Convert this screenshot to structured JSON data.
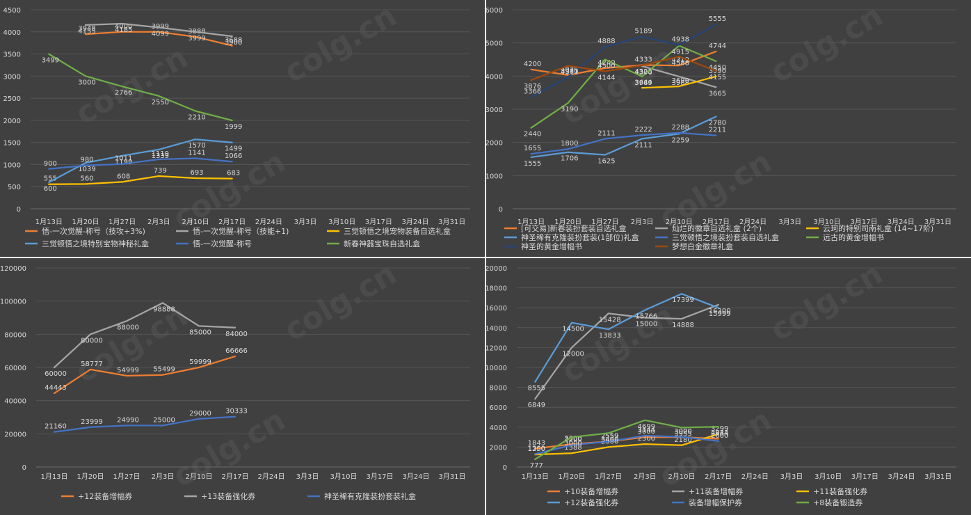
{
  "colors": {
    "orange": "#ED7D31",
    "gray": "#A5A5A5",
    "yellow": "#FFC000",
    "lightblue": "#5B9BD5",
    "blue": "#4472C4",
    "green": "#70AD47",
    "navy": "#264478",
    "brown": "#9E480E"
  },
  "watermark": "colg.cn",
  "chart_data": [
    {
      "type": "line",
      "categories": [
        "1月13日",
        "1月20日",
        "1月27日",
        "2月3日",
        "2月10日",
        "2月17日",
        "2月24日",
        "3月3日",
        "3月10日",
        "3月17日",
        "3月24日",
        "3月31日"
      ],
      "ylim": [
        0,
        4500
      ],
      "ystep": 500,
      "legend_position": "bottom",
      "series": [
        {
          "name": "悟-一次觉醒-称号（技攻+3%)",
          "color": "orange",
          "values": [
            null,
            3948,
            4000,
            3999,
            3888,
            3688,
            null,
            null,
            null,
            null,
            null,
            null
          ]
        },
        {
          "name": "悟-一次觉醒-称号（技能+1)",
          "color": "gray",
          "values": [
            null,
            4155,
            4185,
            4099,
            3999,
            3900,
            null,
            null,
            null,
            null,
            null,
            null
          ]
        },
        {
          "name": "三觉顿悟之境宠物装备自选礼盒",
          "color": "yellow",
          "values": [
            555,
            560,
            608,
            739,
            693,
            683,
            null,
            null,
            null,
            null,
            null,
            null
          ]
        },
        {
          "name": "三觉顿悟之境特别宝物神秘礼盒",
          "color": "lightblue",
          "values": [
            600,
            1039,
            1199,
            1339,
            1570,
            1499,
            null,
            null,
            null,
            null,
            null,
            null
          ]
        },
        {
          "name": "悟-一次觉醒-称号",
          "color": "blue",
          "values": [
            900,
            980,
            1011,
            1119,
            1141,
            1066,
            null,
            null,
            null,
            null,
            null,
            null
          ]
        },
        {
          "name": "新春神器宝珠自选礼盒",
          "color": "green",
          "values": [
            3499,
            3000,
            2766,
            2550,
            2210,
            1999,
            null,
            null,
            null,
            null,
            null,
            null
          ]
        }
      ]
    },
    {
      "type": "line",
      "categories": [
        "1月13日",
        "1月20日",
        "1月27日",
        "2月3日",
        "2月10日",
        "2月17日",
        "2月24日",
        "3月3日",
        "3月10日",
        "3月17日",
        "3月24日",
        "3月31日"
      ],
      "ylim": [
        0,
        6000
      ],
      "ystep": 1000,
      "legend_position": "bottom",
      "series": [
        {
          "name": "[可交易]新春装扮套装自选礼盒",
          "color": "orange",
          "values": [
            4200,
            4030,
            4240,
            4333,
            4319,
            4744,
            null,
            null,
            null,
            null,
            null,
            null
          ]
        },
        {
          "name": "灿烂的徽章自选礼盒 (2个)",
          "color": "gray",
          "values": [
            null,
            null,
            null,
            4300,
            3988,
            3665,
            null,
            null,
            null,
            null,
            null,
            null
          ]
        },
        {
          "name": "云珂的特别司南礼盒 (14~17阶)",
          "color": "yellow",
          "values": [
            null,
            null,
            null,
            3644,
            3690,
            3990,
            null,
            null,
            null,
            null,
            null,
            null
          ]
        },
        {
          "name": "神圣稀有克隆装扮套装(1部位)礼盒",
          "color": "lightblue",
          "values": [
            1555,
            1706,
            1625,
            2111,
            2259,
            2780,
            null,
            null,
            null,
            null,
            null,
            null
          ]
        },
        {
          "name": "三觉顿悟之境装扮套装自选礼盒",
          "color": "blue",
          "values": [
            1655,
            1800,
            2111,
            2222,
            2288,
            2211,
            null,
            null,
            null,
            null,
            null,
            null
          ]
        },
        {
          "name": "远古的黄金增幅书",
          "color": "green",
          "values": [
            2440,
            3190,
            4500,
            3989,
            4915,
            4450,
            null,
            null,
            null,
            null,
            null,
            null
          ]
        },
        {
          "name": "神圣的黄金增幅书",
          "color": "navy",
          "values": [
            3366,
            3980,
            4888,
            5189,
            4938,
            5555,
            null,
            null,
            null,
            null,
            null,
            null
          ]
        },
        {
          "name": "梦想白金徽章礼盒",
          "color": "brown",
          "values": [
            3876,
            4311,
            4144,
            4321,
            4588,
            4155,
            null,
            null,
            null,
            null,
            null,
            null
          ]
        }
      ]
    },
    {
      "type": "line",
      "categories": [
        "1月13日",
        "1月20日",
        "1月27日",
        "2月3日",
        "2月10日",
        "2月17日",
        "2月24日",
        "3月3日",
        "3月10日",
        "3月17日",
        "3月24日",
        "3月31日"
      ],
      "ylim": [
        0,
        120000
      ],
      "ystep": 20000,
      "legend_position": "bottom",
      "series": [
        {
          "name": "+12装备增幅券",
          "color": "orange",
          "values": [
            44443,
            58777,
            54999,
            55499,
            59999,
            66666,
            null,
            null,
            null,
            null,
            null,
            null
          ]
        },
        {
          "name": "+13装备强化券",
          "color": "gray",
          "values": [
            60000,
            80000,
            88000,
            98888,
            85000,
            84000,
            null,
            null,
            null,
            null,
            null,
            null
          ]
        },
        {
          "name": "神圣稀有克隆装扮套装礼盒",
          "color": "blue",
          "values": [
            21160,
            23999,
            24990,
            25000,
            29000,
            30333,
            null,
            null,
            null,
            null,
            null,
            null
          ]
        }
      ]
    },
    {
      "type": "line",
      "categories": [
        "1月13日",
        "1月20日",
        "1月27日",
        "2月3日",
        "2月10日",
        "2月17日",
        "2月24日",
        "3月3日",
        "3月10日",
        "3月17日",
        "3月24日",
        "3月31日"
      ],
      "ylim": [
        0,
        20000
      ],
      "ystep": 2000,
      "legend_position": "bottom",
      "series": [
        {
          "name": "+10装备增幅券",
          "color": "orange",
          "values": [
            1843,
            2300,
            2559,
            3000,
            3000,
            2834,
            null,
            null,
            null,
            null,
            null,
            null
          ]
        },
        {
          "name": "+11装备增幅券",
          "color": "gray",
          "values": [
            6849,
            12000,
            15428,
            15000,
            14888,
            16300,
            null,
            null,
            null,
            null,
            null,
            null
          ]
        },
        {
          "name": "+11装备强化券",
          "color": "yellow",
          "values": [
            1250,
            1388,
            2000,
            2300,
            2180,
            3299,
            null,
            null,
            null,
            null,
            null,
            null
          ]
        },
        {
          "name": "+12装备强化券",
          "color": "lightblue",
          "values": [
            8555,
            14500,
            13833,
            15766,
            17399,
            15999,
            null,
            null,
            null,
            null,
            null,
            null
          ]
        },
        {
          "name": "装备增幅保护券",
          "color": "blue",
          "values": [
            1300,
            2200,
            2559,
            3144,
            3020,
            2600,
            null,
            null,
            null,
            null,
            null,
            null
          ]
        },
        {
          "name": "+8装备锻造券",
          "color": "green",
          "values": [
            777,
            3000,
            3400,
            4699,
            3955,
            4044,
            null,
            null,
            null,
            null,
            null,
            null
          ]
        }
      ]
    }
  ]
}
